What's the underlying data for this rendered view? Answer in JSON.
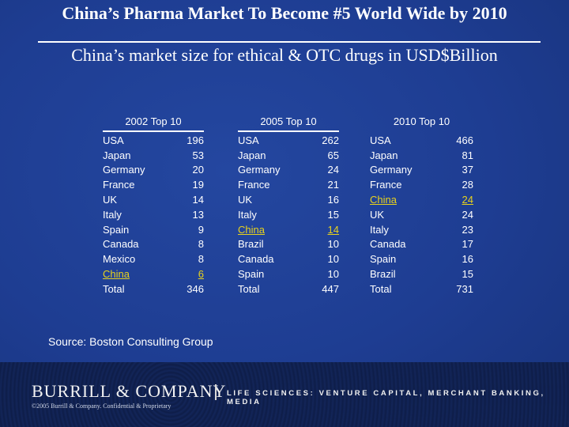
{
  "title": "China’s Pharma Market To Become #5 World Wide by 2010",
  "subtitle": "China’s market size for ethical & OTC drugs in USD$Billion",
  "tables": [
    {
      "heading": "2002 Top 10",
      "rows": [
        {
          "country": "USA",
          "value": "196"
        },
        {
          "country": "Japan",
          "value": "53"
        },
        {
          "country": "Germany",
          "value": "20"
        },
        {
          "country": "France",
          "value": "19"
        },
        {
          "country": "UK",
          "value": "14"
        },
        {
          "country": "Italy",
          "value": "13"
        },
        {
          "country": "Spain",
          "value": "9"
        },
        {
          "country": "Canada",
          "value": "8"
        },
        {
          "country": "Mexico",
          "value": "8"
        },
        {
          "country": "China",
          "value": "6"
        },
        {
          "country": "Total",
          "value": "346"
        }
      ]
    },
    {
      "heading": "2005 Top 10",
      "rows": [
        {
          "country": "USA",
          "value": "262"
        },
        {
          "country": "Japan",
          "value": "65"
        },
        {
          "country": "Germany",
          "value": "24"
        },
        {
          "country": "France",
          "value": "21"
        },
        {
          "country": "UK",
          "value": "16"
        },
        {
          "country": "Italy",
          "value": "15"
        },
        {
          "country": "China",
          "value": "14"
        },
        {
          "country": "Brazil",
          "value": "10"
        },
        {
          "country": "Canada",
          "value": "10"
        },
        {
          "country": "Spain",
          "value": "10"
        },
        {
          "country": "Total",
          "value": "447"
        }
      ]
    },
    {
      "heading": "2010 Top 10",
      "rows": [
        {
          "country": "USA",
          "value": "466"
        },
        {
          "country": "Japan",
          "value": "81"
        },
        {
          "country": "Germany",
          "value": "37"
        },
        {
          "country": "France",
          "value": "28"
        },
        {
          "country": "China",
          "value": "24"
        },
        {
          "country": "UK",
          "value": "24"
        },
        {
          "country": "Italy",
          "value": "23"
        },
        {
          "country": "Canada",
          "value": "17"
        },
        {
          "country": "Spain",
          "value": "16"
        },
        {
          "country": "Brazil",
          "value": "15"
        },
        {
          "country": "Total",
          "value": "731"
        }
      ]
    }
  ],
  "source": "Source: Boston Consulting Group",
  "footer": {
    "brand": "BURRILL & COMPANY",
    "tagline": "LIFE SCIENCES: VENTURE CAPITAL, MERCHANT BANKING, MEDIA",
    "copyright": "©2005 Burrill & Company. Confidential & Proprietary"
  },
  "colors": {
    "background": "#1e3d92",
    "highlight": "#e8d21c",
    "text": "#ffffff",
    "footer": "#0f1f4c"
  }
}
